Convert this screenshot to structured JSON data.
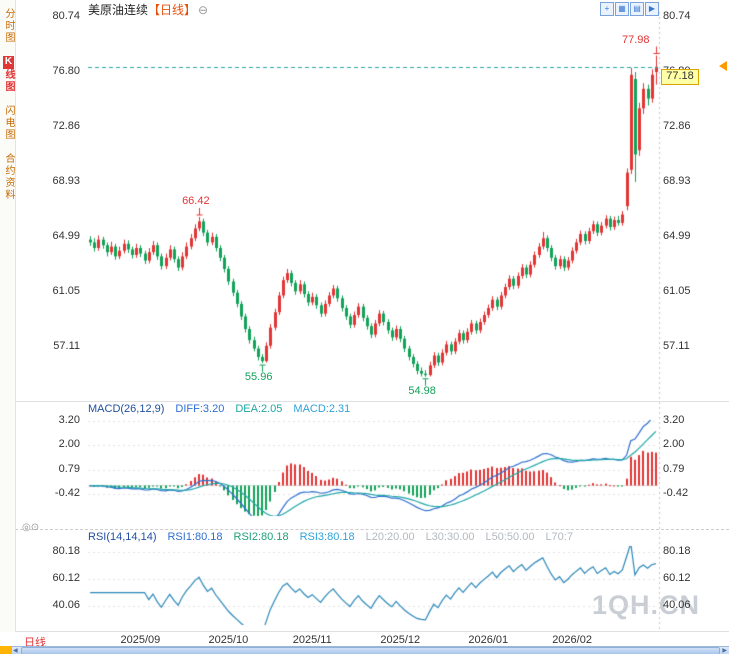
{
  "header": {
    "title": "美原油连续",
    "period": "【日线】"
  },
  "icons": {
    "collapse": "⊖",
    "panel_toggle": "◎⊙",
    "scroll_left": "◀",
    "scroll_right": "▶"
  },
  "toolbar": {
    "icons": [
      {
        "name": "zoom-in",
        "glyph": "+"
      },
      {
        "name": "grid-chart",
        "glyph": "▦"
      },
      {
        "name": "list-chart",
        "glyph": "▤"
      },
      {
        "name": "next-page",
        "glyph": "▶"
      }
    ]
  },
  "sidebar": {
    "items": [
      {
        "label": "分时图",
        "active": false
      },
      {
        "label": "K线图",
        "active": true
      },
      {
        "label": "闪电图",
        "active": false
      },
      {
        "label": "合约资料",
        "active": false
      }
    ]
  },
  "macd_panel": {
    "name": "MACD(26,12,9)",
    "diff": "DIFF:3.20",
    "dea": "DEA:2.05",
    "macd": "MACD:2.31"
  },
  "rsi_panel": {
    "name": "RSI(14,14,14)",
    "rsi1": "RSI1:80.18",
    "rsi2": "RSI2:80.18",
    "rsi3": "RSI3:80.18",
    "l20": "L20:20.00",
    "l30": "L30:30.00",
    "l50": "L50:50.00",
    "l70": "L70:7"
  },
  "price_marker": {
    "value": "77.18"
  },
  "bottom": {
    "period_tab": "日线"
  },
  "watermark": "1QH.CN",
  "chart_data": {
    "type": "candlestick",
    "title": "美原油连续 日线",
    "last_price": 77.18,
    "up_color": "#e23535",
    "down_color": "#12a258",
    "y_axis": {
      "labels": [
        "80.74",
        "76.80",
        "72.86",
        "68.93",
        "64.99",
        "61.05",
        "57.11"
      ],
      "values": [
        80.74,
        76.8,
        72.86,
        68.93,
        64.99,
        61.05,
        57.11
      ]
    },
    "x_labels": [
      {
        "label": "2025/09",
        "index": 12
      },
      {
        "label": "2025/10",
        "index": 33
      },
      {
        "label": "2025/11",
        "index": 53
      },
      {
        "label": "2025/12",
        "index": 74
      },
      {
        "label": "2026/01",
        "index": 95
      },
      {
        "label": "2026/02",
        "index": 115
      }
    ],
    "annotations": [
      {
        "text": "66.42",
        "index": 26,
        "price": 66.42,
        "side": "high",
        "color": "#e23535"
      },
      {
        "text": "55.96",
        "index": 41,
        "price": 55.96,
        "side": "low",
        "color": "#12a258"
      },
      {
        "text": "54.98",
        "index": 80,
        "price": 54.98,
        "side": "low",
        "color": "#12a258"
      },
      {
        "text": "77.98",
        "index": 135,
        "price": 77.98,
        "side": "high",
        "color": "#e23535"
      }
    ],
    "candles": [
      [
        64.8,
        65.05,
        64.35,
        64.6
      ],
      [
        64.6,
        64.9,
        63.95,
        64.2
      ],
      [
        64.2,
        65.1,
        64.0,
        64.8
      ],
      [
        64.8,
        65.0,
        64.15,
        64.4
      ],
      [
        64.4,
        64.6,
        63.6,
        63.9
      ],
      [
        63.9,
        64.65,
        63.7,
        64.3
      ],
      [
        64.3,
        64.5,
        63.35,
        63.6
      ],
      [
        63.6,
        64.3,
        63.4,
        64.0
      ],
      [
        64.0,
        64.8,
        63.8,
        64.5
      ],
      [
        64.5,
        64.75,
        63.85,
        64.1
      ],
      [
        64.1,
        64.3,
        63.45,
        63.7
      ],
      [
        63.7,
        64.5,
        63.5,
        64.2
      ],
      [
        64.2,
        64.4,
        63.55,
        63.8
      ],
      [
        63.8,
        64.0,
        63.05,
        63.3
      ],
      [
        63.3,
        64.2,
        63.1,
        63.9
      ],
      [
        63.9,
        64.7,
        63.7,
        64.4
      ],
      [
        64.4,
        64.6,
        63.35,
        63.6
      ],
      [
        63.6,
        63.8,
        62.65,
        62.9
      ],
      [
        62.9,
        63.8,
        62.7,
        63.5
      ],
      [
        63.5,
        64.4,
        63.3,
        64.1
      ],
      [
        64.1,
        64.3,
        63.15,
        63.4
      ],
      [
        63.4,
        63.6,
        62.55,
        62.8
      ],
      [
        62.8,
        63.9,
        62.6,
        63.6
      ],
      [
        63.6,
        64.6,
        63.4,
        64.3
      ],
      [
        64.3,
        65.2,
        64.1,
        64.9
      ],
      [
        64.9,
        65.9,
        64.7,
        65.6
      ],
      [
        65.6,
        66.42,
        65.4,
        66.1
      ],
      [
        66.1,
        66.3,
        65.05,
        65.3
      ],
      [
        65.3,
        65.5,
        64.35,
        64.6
      ],
      [
        64.6,
        65.3,
        64.4,
        65.0
      ],
      [
        65.0,
        65.2,
        63.95,
        64.2
      ],
      [
        64.2,
        64.4,
        63.25,
        63.5
      ],
      [
        63.5,
        63.7,
        62.45,
        62.7
      ],
      [
        62.7,
        62.9,
        61.55,
        61.8
      ],
      [
        61.8,
        62.0,
        60.75,
        61.0
      ],
      [
        61.0,
        61.2,
        59.95,
        60.2
      ],
      [
        60.2,
        60.4,
        59.05,
        59.3
      ],
      [
        59.3,
        59.5,
        58.15,
        58.4
      ],
      [
        58.4,
        58.6,
        57.35,
        57.6
      ],
      [
        57.6,
        57.85,
        56.8,
        57.0
      ],
      [
        57.0,
        57.2,
        56.15,
        56.4
      ],
      [
        56.4,
        56.6,
        55.96,
        56.1
      ],
      [
        56.1,
        57.45,
        56.0,
        57.2
      ],
      [
        57.2,
        58.75,
        57.0,
        58.5
      ],
      [
        58.5,
        59.85,
        58.3,
        59.6
      ],
      [
        59.6,
        61.05,
        59.4,
        60.8
      ],
      [
        60.8,
        62.15,
        60.6,
        61.9
      ],
      [
        61.9,
        62.7,
        61.7,
        62.4
      ],
      [
        62.4,
        62.6,
        61.45,
        61.7
      ],
      [
        61.7,
        61.9,
        60.85,
        61.1
      ],
      [
        61.1,
        61.9,
        60.9,
        61.6
      ],
      [
        61.6,
        61.8,
        60.65,
        60.9
      ],
      [
        60.9,
        61.1,
        60.05,
        60.3
      ],
      [
        60.3,
        61.0,
        60.1,
        60.7
      ],
      [
        60.7,
        60.9,
        59.85,
        60.1
      ],
      [
        60.1,
        60.3,
        59.25,
        59.5
      ],
      [
        59.5,
        60.45,
        59.3,
        60.2
      ],
      [
        60.2,
        61.05,
        60.0,
        60.8
      ],
      [
        60.8,
        61.55,
        60.6,
        61.3
      ],
      [
        61.3,
        61.5,
        60.35,
        60.6
      ],
      [
        60.6,
        60.8,
        59.65,
        59.9
      ],
      [
        59.9,
        60.1,
        59.05,
        59.3
      ],
      [
        59.3,
        59.5,
        58.45,
        58.7
      ],
      [
        58.7,
        59.65,
        58.5,
        59.4
      ],
      [
        59.4,
        60.25,
        59.2,
        60.0
      ],
      [
        60.0,
        60.2,
        58.95,
        59.2
      ],
      [
        59.2,
        59.4,
        58.35,
        58.6
      ],
      [
        58.6,
        58.8,
        57.75,
        58.0
      ],
      [
        58.0,
        59.05,
        57.8,
        58.8
      ],
      [
        58.8,
        59.75,
        58.6,
        59.5
      ],
      [
        59.5,
        59.7,
        58.65,
        58.9
      ],
      [
        58.9,
        59.1,
        58.05,
        58.3
      ],
      [
        58.3,
        58.5,
        57.55,
        57.8
      ],
      [
        57.8,
        58.65,
        57.6,
        58.4
      ],
      [
        58.4,
        58.6,
        57.45,
        57.7
      ],
      [
        57.7,
        57.9,
        56.75,
        57.0
      ],
      [
        57.0,
        57.2,
        56.15,
        56.4
      ],
      [
        56.4,
        56.6,
        55.65,
        55.9
      ],
      [
        55.9,
        56.1,
        55.15,
        55.4
      ],
      [
        55.4,
        55.65,
        55.0,
        55.2
      ],
      [
        55.2,
        55.45,
        54.98,
        55.1
      ],
      [
        55.1,
        56.05,
        55.0,
        55.8
      ],
      [
        55.8,
        56.75,
        55.6,
        56.5
      ],
      [
        56.5,
        56.7,
        55.75,
        56.0
      ],
      [
        56.0,
        56.95,
        55.8,
        56.7
      ],
      [
        56.7,
        57.55,
        56.5,
        57.3
      ],
      [
        57.3,
        57.5,
        56.55,
        56.8
      ],
      [
        56.8,
        57.75,
        56.6,
        57.5
      ],
      [
        57.5,
        58.35,
        57.3,
        58.1
      ],
      [
        58.1,
        58.3,
        57.35,
        57.6
      ],
      [
        57.6,
        58.45,
        57.4,
        58.2
      ],
      [
        58.2,
        59.05,
        58.0,
        58.8
      ],
      [
        58.8,
        59.0,
        58.05,
        58.3
      ],
      [
        58.3,
        59.15,
        58.1,
        58.9
      ],
      [
        58.9,
        59.65,
        58.7,
        59.4
      ],
      [
        59.4,
        60.15,
        59.2,
        59.9
      ],
      [
        59.9,
        60.75,
        59.7,
        60.5
      ],
      [
        60.5,
        60.7,
        59.75,
        60.0
      ],
      [
        60.0,
        61.05,
        59.8,
        60.8
      ],
      [
        60.8,
        61.65,
        60.6,
        61.4
      ],
      [
        61.4,
        62.25,
        61.2,
        62.0
      ],
      [
        62.0,
        62.2,
        61.25,
        61.5
      ],
      [
        61.5,
        62.45,
        61.3,
        62.2
      ],
      [
        62.2,
        63.05,
        62.0,
        62.8
      ],
      [
        62.8,
        63.0,
        62.05,
        62.3
      ],
      [
        62.3,
        63.25,
        62.1,
        63.0
      ],
      [
        63.0,
        63.95,
        62.8,
        63.7
      ],
      [
        63.7,
        64.55,
        63.5,
        64.3
      ],
      [
        64.3,
        65.35,
        64.1,
        64.9
      ],
      [
        64.9,
        65.1,
        63.95,
        64.2
      ],
      [
        64.2,
        64.4,
        63.25,
        63.5
      ],
      [
        63.5,
        63.7,
        62.65,
        62.9
      ],
      [
        62.9,
        63.65,
        62.7,
        63.4
      ],
      [
        63.4,
        63.6,
        62.55,
        62.8
      ],
      [
        62.8,
        63.55,
        62.6,
        63.3
      ],
      [
        63.3,
        64.25,
        63.1,
        64.0
      ],
      [
        64.0,
        64.85,
        63.8,
        64.6
      ],
      [
        64.6,
        65.45,
        64.4,
        65.2
      ],
      [
        65.2,
        65.4,
        64.45,
        64.7
      ],
      [
        64.7,
        65.65,
        64.5,
        65.4
      ],
      [
        65.4,
        66.15,
        65.2,
        65.9
      ],
      [
        65.9,
        66.1,
        65.05,
        65.3
      ],
      [
        65.3,
        66.05,
        65.1,
        65.8
      ],
      [
        65.8,
        66.55,
        65.6,
        66.3
      ],
      [
        66.3,
        66.5,
        65.45,
        65.7
      ],
      [
        65.7,
        66.45,
        65.5,
        66.2
      ],
      [
        66.2,
        66.5,
        65.8,
        66.0
      ],
      [
        66.0,
        66.85,
        65.8,
        66.6
      ],
      [
        67.2,
        69.9,
        66.9,
        69.6
      ],
      [
        69.8,
        77.1,
        69.5,
        76.6
      ],
      [
        76.3,
        76.8,
        68.93,
        70.9
      ],
      [
        71.2,
        74.6,
        70.8,
        74.2
      ],
      [
        74.2,
        76.0,
        73.8,
        75.6
      ],
      [
        75.6,
        75.9,
        74.4,
        74.9
      ],
      [
        74.9,
        77.0,
        74.6,
        76.6
      ],
      [
        76.8,
        77.98,
        75.9,
        77.18
      ]
    ],
    "macd": {
      "params": [
        26,
        12,
        9
      ],
      "diff_color": "#2f6fd0",
      "dea_color": "#1fa6a6",
      "display": {
        "diff": 3.2,
        "dea": 2.05,
        "macd": 2.31
      },
      "axis": {
        "labels": [
          "3.20",
          "2.00",
          "0.79",
          "-0.42"
        ],
        "values": [
          3.2,
          2.0,
          0.79,
          -0.42
        ]
      }
    },
    "rsi": {
      "params": [
        14,
        14,
        14
      ],
      "line_color": "#2b87b8",
      "display": {
        "rsi1": 80.18,
        "rsi2": 80.18,
        "rsi3": 80.18
      },
      "axis": {
        "labels": [
          "80.18",
          "60.12",
          "40.06"
        ],
        "values": [
          80.18,
          60.12,
          40.06
        ]
      }
    }
  }
}
